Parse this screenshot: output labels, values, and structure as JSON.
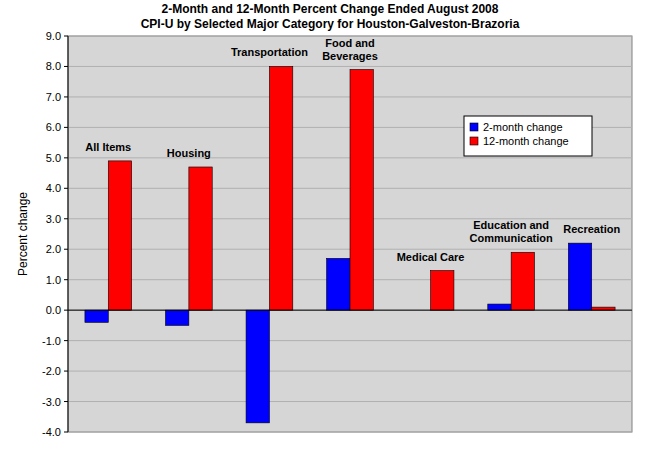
{
  "chart_data": {
    "type": "bar",
    "title": "2-Month and 12-Month Percent Change Ended August 2008",
    "subtitle": "CPI-U by Selected Major Category for Houston-Galveston-Brazoria",
    "y_label": "Percent change",
    "categories": [
      "All Items",
      "Housing",
      "Transportation",
      "Food and Beverages",
      "Medical Care",
      "Education and Communication",
      "Recreation"
    ],
    "series": [
      {
        "name": "2-month change",
        "color": "#0000ff",
        "values": [
          -0.4,
          -0.5,
          -3.7,
          1.7,
          0.0,
          0.2,
          2.2
        ]
      },
      {
        "name": "12-month change",
        "color": "#ff0000",
        "values": [
          4.9,
          4.7,
          8.0,
          7.9,
          1.3,
          1.9,
          0.1
        ]
      }
    ],
    "ylim": [
      -4,
      9
    ],
    "yticks": [
      {
        "value": -4,
        "label": "-4.0"
      },
      {
        "value": -3,
        "label": "-3.0"
      },
      {
        "value": -2,
        "label": "-2.0"
      },
      {
        "value": -1,
        "label": "-1.0"
      },
      {
        "value": 0,
        "label": "0.0"
      },
      {
        "value": 1,
        "label": "1.0"
      },
      {
        "value": 2,
        "label": "2.0"
      },
      {
        "value": 3,
        "label": "3.0"
      },
      {
        "value": 4,
        "label": "4.0"
      },
      {
        "value": 5,
        "label": "5.0"
      },
      {
        "value": 6,
        "label": "6.0"
      },
      {
        "value": 7,
        "label": "7.0"
      },
      {
        "value": 8,
        "label": "8.0"
      },
      {
        "value": 9,
        "label": "9.0"
      }
    ],
    "grid": true,
    "legend": "upper right"
  }
}
